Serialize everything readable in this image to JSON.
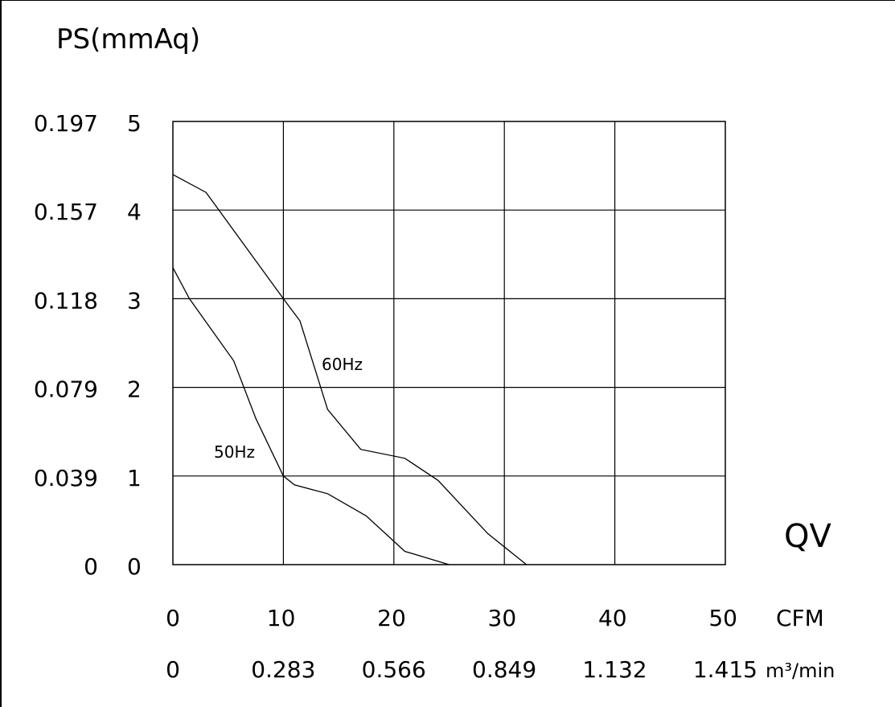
{
  "chart_data": {
    "type": "line",
    "title": "",
    "ylabel": "PS(mmAq)",
    "xlabel": "QV",
    "x_unit_primary": "CFM",
    "x_unit_secondary": "m³/min",
    "xlim": [
      0,
      50
    ],
    "ylim": [
      0,
      5
    ],
    "grid": true,
    "x_ticks": [
      "0",
      "10",
      "20",
      "30",
      "40",
      "50"
    ],
    "x_ticks_secondary": [
      "0",
      "0.283",
      "0.566",
      "0.849",
      "1.132",
      "1.415"
    ],
    "y_ticks": [
      "0",
      "1",
      "2",
      "3",
      "4",
      "5"
    ],
    "y_ticks_secondary": [
      "0",
      "0.039",
      "0.079",
      "0.118",
      "0.157",
      "0.197"
    ],
    "series": [
      {
        "name": "60Hz",
        "x": [
          0,
          3,
          10,
          11.5,
          14,
          17,
          21,
          24,
          28.5,
          32
        ],
        "y": [
          4.4,
          4.2,
          3.0,
          2.75,
          1.75,
          1.3,
          1.2,
          0.95,
          0.35,
          0
        ]
      },
      {
        "name": "50Hz",
        "x": [
          0,
          1.5,
          5.5,
          7.5,
          10,
          11,
          14,
          17.5,
          21,
          25
        ],
        "y": [
          3.35,
          3.0,
          2.3,
          1.65,
          1.0,
          0.9,
          0.8,
          0.55,
          0.15,
          0
        ]
      }
    ]
  }
}
